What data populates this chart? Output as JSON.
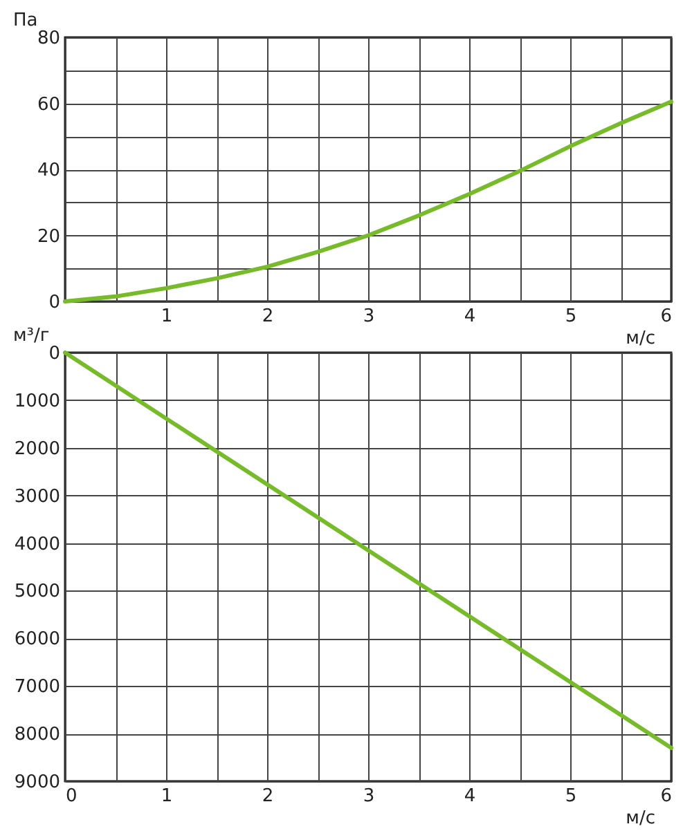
{
  "chart_data": [
    {
      "type": "line",
      "ylabel": "Па",
      "xlabel": "м/с",
      "x": [
        0,
        0.5,
        1,
        1.5,
        2,
        2.5,
        3,
        3.5,
        4,
        4.5,
        5,
        5.5,
        6
      ],
      "series": [
        {
          "color": "#77bb2b",
          "values": [
            0,
            1.5,
            4,
            7,
            10.5,
            15,
            20,
            26,
            32.5,
            39.5,
            47,
            54,
            60.5
          ]
        }
      ],
      "xlim": [
        0,
        6
      ],
      "xticks": [
        {
          "value": 0,
          "label": null
        },
        {
          "value": 0.5,
          "label": null
        },
        1,
        {
          "value": 1.5,
          "label": null
        },
        2,
        {
          "value": 2.5,
          "label": null
        },
        3,
        {
          "value": 3.5,
          "label": null
        },
        4,
        {
          "value": 4.5,
          "label": null
        },
        5,
        {
          "value": 5.5,
          "label": null
        },
        6
      ],
      "ylim": [
        0,
        80
      ],
      "yticks": [
        0,
        {
          "value": 10,
          "label": null
        },
        20,
        {
          "value": 30,
          "label": null
        },
        40,
        {
          "value": 50,
          "label": null
        },
        60,
        {
          "value": 70,
          "label": null
        },
        80
      ],
      "grid": true
    },
    {
      "type": "line",
      "ylabel": "м³/г",
      "xlabel": "м/с",
      "x": [
        0,
        3,
        6
      ],
      "series": [
        {
          "color": "#77bb2b",
          "values": [
            0,
            4150,
            8300
          ]
        }
      ],
      "xlim": [
        0,
        6
      ],
      "xticks": [
        0,
        {
          "value": 0.5,
          "label": null
        },
        1,
        {
          "value": 1.5,
          "label": null
        },
        2,
        {
          "value": 2.5,
          "label": null
        },
        3,
        {
          "value": 3.5,
          "label": null
        },
        4,
        {
          "value": 4.5,
          "label": null
        },
        5,
        {
          "value": 5.5,
          "label": null
        },
        6
      ],
      "ylim": [
        9000,
        0
      ],
      "yticks": [
        0,
        1000,
        2000,
        3000,
        4000,
        5000,
        6000,
        7000,
        8000,
        9000
      ],
      "grid": true
    }
  ]
}
